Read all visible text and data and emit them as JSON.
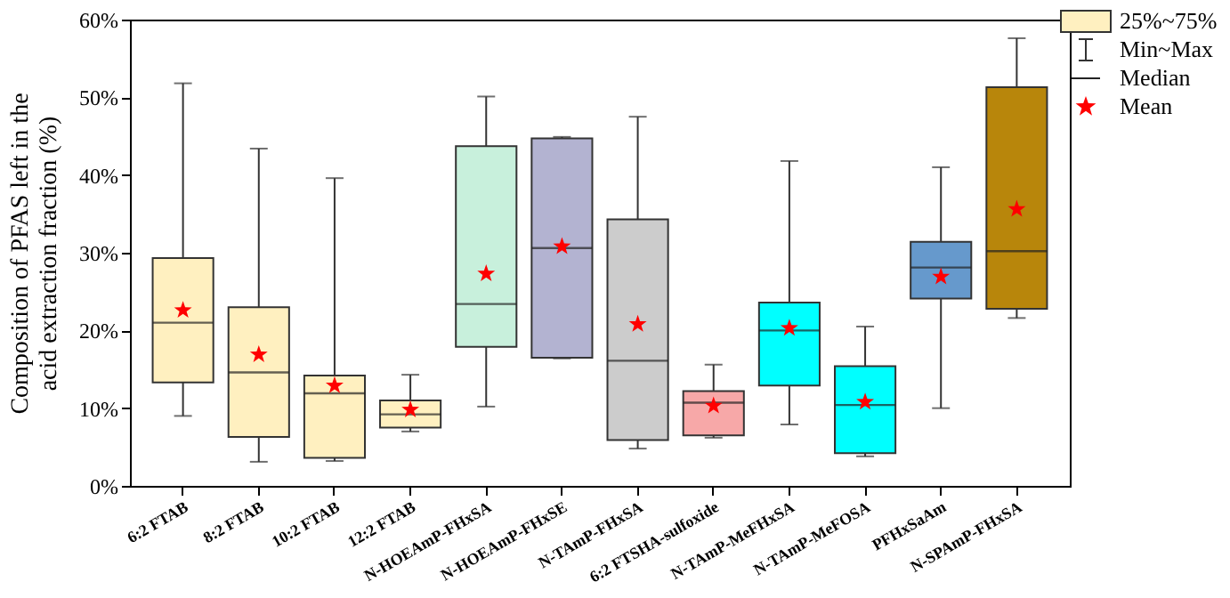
{
  "chart_data": {
    "type": "box",
    "ylabel": "Composition of PFAS left in the\nacid extraction fraction (%)",
    "categories": [
      "6:2 FTAB",
      "8:2 FTAB",
      "10:2 FTAB",
      "12:2 FTAB",
      "N-HOEAmP-FHxSA",
      "N-HOEAmP-FHxSE",
      "N-TAmP-FHxSA",
      "6:2 FTSHA-sulfoxide",
      "N-TAmP-MeFHxSA",
      "N-TAmP-MeFOSA",
      "PFHxSaAm",
      "N-SPAmP-FHxSA"
    ],
    "boxes": [
      {
        "low": 9,
        "q1": 13.3,
        "median": 21,
        "q3": 29.3,
        "high": 51.8,
        "mean": 22.6
      },
      {
        "low": 3.1,
        "q1": 6.3,
        "median": 14.6,
        "q3": 23,
        "high": 43.4,
        "mean": 16.9
      },
      {
        "low": 3.2,
        "q1": 3.6,
        "median": 11.9,
        "q3": 14.2,
        "high": 39.6,
        "mean": 12.9
      },
      {
        "low": 7,
        "q1": 7.5,
        "median": 9.2,
        "q3": 11,
        "high": 14.3,
        "mean": 9.8
      },
      {
        "low": 10.2,
        "q1": 17.9,
        "median": 23.4,
        "q3": 43.7,
        "high": 50.1,
        "mean": 27.3
      },
      {
        "low": 16.4,
        "q1": 16.5,
        "median": 30.6,
        "q3": 44.7,
        "high": 44.9,
        "mean": 30.8
      },
      {
        "low": 4.8,
        "q1": 5.9,
        "median": 16.1,
        "q3": 34.3,
        "high": 47.5,
        "mean": 20.8
      },
      {
        "low": 6.2,
        "q1": 6.5,
        "median": 10.7,
        "q3": 12.2,
        "high": 15.6,
        "mean": 10.3
      },
      {
        "low": 7.9,
        "q1": 12.9,
        "median": 20,
        "q3": 23.6,
        "high": 41.8,
        "mean": 20.3
      },
      {
        "low": 3.8,
        "q1": 4.2,
        "median": 10.4,
        "q3": 15.4,
        "high": 20.5,
        "mean": 10.8
      },
      {
        "low": 10,
        "q1": 24.1,
        "median": 28.1,
        "q3": 31.4,
        "high": 41,
        "mean": 26.9
      },
      {
        "low": 21.6,
        "q1": 22.8,
        "median": 30.2,
        "q3": 51.3,
        "high": 57.6,
        "mean": 35.6
      }
    ],
    "colors": [
      "#fff0c0",
      "#fff0c0",
      "#fff0c0",
      "#fff0c0",
      "#c8f0dc",
      "#b3b3d1",
      "#cccccc",
      "#f7a8a8",
      "#00ffff",
      "#00ffff",
      "#6699cc",
      "#b8860b"
    ],
    "ylim": [
      0,
      60
    ],
    "yticks": [
      {
        "value": 0,
        "label": "0%"
      },
      {
        "value": 10,
        "label": "10%"
      },
      {
        "value": 20,
        "label": "20%"
      },
      {
        "value": 30,
        "label": "30%"
      },
      {
        "value": 40,
        "label": "40%"
      },
      {
        "value": 50,
        "label": "50%"
      },
      {
        "value": 60,
        "label": "60%"
      }
    ],
    "marker": "star",
    "annotations": [
      "25%~75%",
      "Min~Max",
      "Median",
      "Mean"
    ]
  }
}
